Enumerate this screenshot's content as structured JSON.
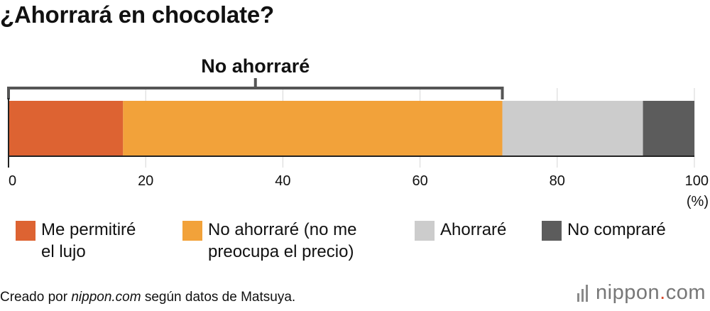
{
  "title": "¿Ahorrará en chocolate?",
  "bracket_label": "No ahorraré",
  "unit": "(%)",
  "chart_data": {
    "type": "bar",
    "orientation": "horizontal",
    "stacked": true,
    "title": "¿Ahorrará en chocolate?",
    "xlim": [
      0,
      100
    ],
    "xticks": [
      0,
      20,
      40,
      60,
      80,
      100
    ],
    "grid": true,
    "series": [
      {
        "name": "Me permitiré el lujo",
        "value": 16.7,
        "color": "#dd6332"
      },
      {
        "name": "No ahorraré (no me preocupa el precio)",
        "value": 55.3,
        "color": "#f2a23a"
      },
      {
        "name": "Ahorraré",
        "value": 20.5,
        "color": "#cccccc"
      },
      {
        "name": "No compraré",
        "value": 7.5,
        "color": "#5c5c5c"
      }
    ],
    "bracket": {
      "label": "No ahorraré",
      "from": 0,
      "to": 72.0
    }
  },
  "legend": [
    {
      "label": "Me permitiré\nel lujo",
      "color": "#dd6332"
    },
    {
      "label": "No ahorraré (no me\npreocupa el precio)",
      "color": "#f2a23a"
    },
    {
      "label": "Ahorraré",
      "color": "#cccccc"
    },
    {
      "label": "No compraré",
      "color": "#5c5c5c"
    }
  ],
  "source": {
    "prefix": "Creado por ",
    "site": "nippon.com",
    "suffix": " según datos de Matsuya."
  },
  "logo": {
    "name": "nippon",
    "dot": ".",
    "tld": "com"
  }
}
